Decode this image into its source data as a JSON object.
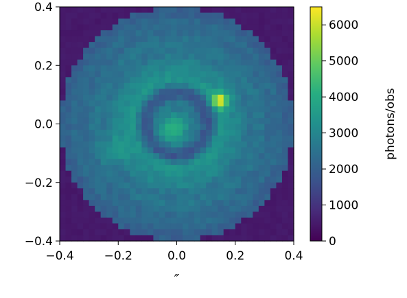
{
  "chart_data": {
    "type": "heatmap",
    "title": "",
    "xlabel": "″",
    "ylabel": "",
    "xlim": [
      -0.4,
      0.4
    ],
    "ylim": [
      -0.4,
      0.4
    ],
    "grid": false,
    "x_ticks": [
      "−0.4",
      "−0.2",
      "0.0",
      "0.2",
      "0.4"
    ],
    "y_ticks": [
      "−0.4",
      "−0.2",
      "0.0",
      "0.2",
      "0.4"
    ],
    "n_pixels": 40,
    "colormap": "viridis",
    "colorbar": {
      "label": "photons/obs",
      "range": [
        0,
        6500
      ],
      "ticks": [
        "0",
        "1000",
        "2000",
        "3000",
        "4000",
        "5000",
        "6000"
      ]
    },
    "features": {
      "background_outside_aperture": 400,
      "aperture_edge_radius_arcsec": 0.4,
      "disk_level_inner": 3000,
      "disk_level_edge": 2000,
      "center_peak": {
        "x": -0.02,
        "y": -0.02,
        "value": 3900
      },
      "dark_ring_radius_arcsec": 0.1,
      "dark_ring_value": 1800,
      "bright_ring_radius_arcsec": 0.17,
      "bright_ring_value": 3400,
      "bright_spot": {
        "x": 0.15,
        "y": 0.08,
        "value": 6500
      },
      "secondary_spot": {
        "x": -0.21,
        "y": -0.09,
        "value": 3600
      }
    }
  }
}
